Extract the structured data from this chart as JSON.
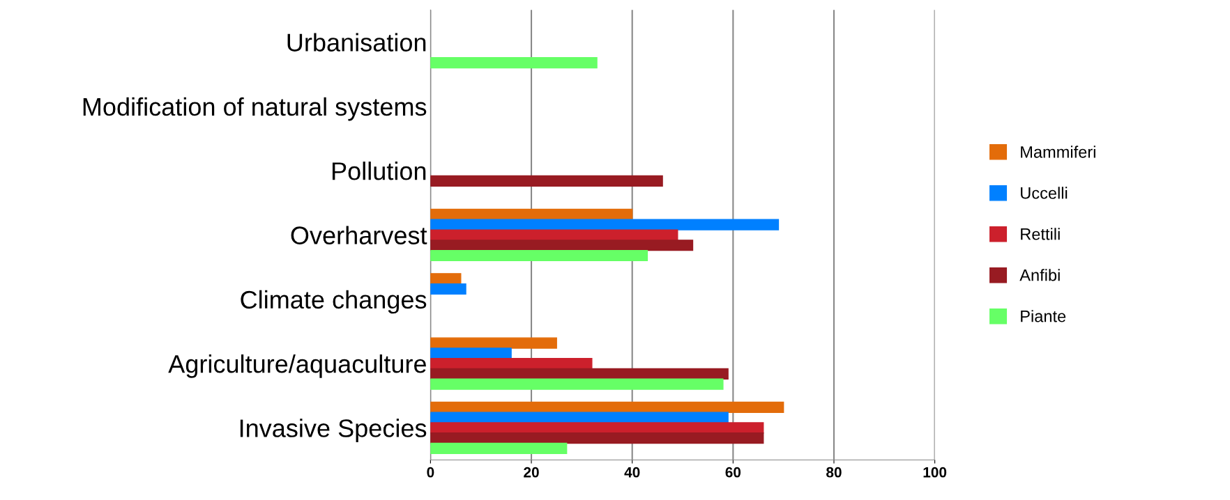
{
  "chart_data": {
    "type": "bar",
    "orientation": "horizontal",
    "categories": [
      "Urbanisation",
      "Modification of natural systems",
      "Pollution",
      "Overharvest",
      "Climate changes",
      "Agriculture/aquaculture",
      "Invasive Species"
    ],
    "series": [
      {
        "name": "Mammiferi",
        "color": "#e36c0a",
        "values": [
          null,
          null,
          null,
          40,
          6,
          25,
          70
        ]
      },
      {
        "name": "Uccelli",
        "color": "#0080ff",
        "values": [
          null,
          null,
          null,
          69,
          7,
          16,
          59
        ]
      },
      {
        "name": "Rettili",
        "color": "#cc202c",
        "values": [
          null,
          null,
          null,
          49,
          null,
          32,
          66
        ]
      },
      {
        "name": "Anfibi",
        "color": "#981b22",
        "values": [
          null,
          null,
          46,
          52,
          null,
          59,
          66
        ]
      },
      {
        "name": "Piante",
        "color": "#66ff66",
        "values": [
          33,
          null,
          null,
          43,
          null,
          58,
          27
        ]
      }
    ],
    "xlim": [
      0,
      100
    ],
    "xticks": [
      0,
      20,
      40,
      60,
      80,
      100
    ],
    "grid": "x",
    "legend": "right"
  }
}
